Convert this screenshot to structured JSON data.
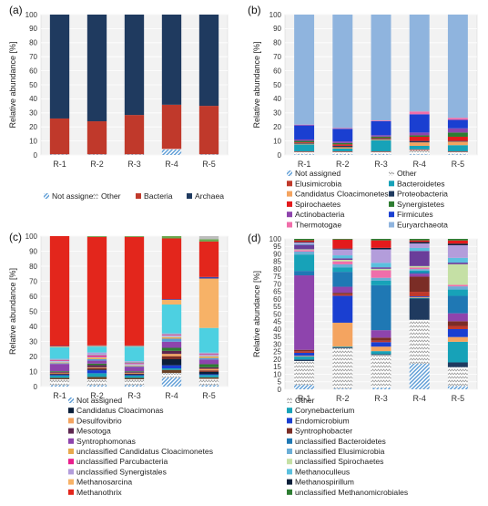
{
  "chart_data": [
    {
      "panel": "(a)",
      "type": "bar",
      "stacked": true,
      "categories": [
        "R-1",
        "R-2",
        "R-3",
        "R-4",
        "R-5"
      ],
      "ylabel": "Relative abundance [%]",
      "ylim": [
        0,
        100
      ],
      "yticks": [
        0,
        10,
        20,
        30,
        40,
        50,
        60,
        70,
        80,
        90,
        100
      ],
      "legend_position": "bottom",
      "legend_cols": 4,
      "series": [
        {
          "name": "Not assigned",
          "color": "#5b9bd5",
          "pattern": "hatch",
          "values": [
            0.3,
            0.3,
            0.3,
            4,
            0.3
          ]
        },
        {
          "name": "Other",
          "color": "#a6a6a6",
          "pattern": "zigzag",
          "values": [
            0.2,
            0.2,
            0.2,
            0.3,
            0.2
          ]
        },
        {
          "name": "Bacteria",
          "color": "#c0392b",
          "values": [
            25.5,
            23.5,
            28,
            31.5,
            34.5
          ]
        },
        {
          "name": "Archaea",
          "color": "#1f3a5f",
          "values": [
            74,
            76,
            71.5,
            64.2,
            65
          ]
        }
      ]
    },
    {
      "panel": "(b)",
      "type": "bar",
      "stacked": true,
      "categories": [
        "R-1",
        "R-2",
        "R-3",
        "R-4",
        "R-5"
      ],
      "ylabel": "Relative abundance [%]",
      "ylim": [
        0,
        100
      ],
      "yticks": [
        0,
        10,
        20,
        30,
        40,
        50,
        60,
        70,
        80,
        90,
        100
      ],
      "legend_position": "bottom",
      "legend_cols": 2,
      "series": [
        {
          "name": "Not assigned",
          "color": "#5b9bd5",
          "pattern": "hatch",
          "values": [
            0.5,
            0.5,
            0.5,
            0.5,
            0.5
          ]
        },
        {
          "name": "Other",
          "color": "#a6a6a6",
          "pattern": "zigzag",
          "values": [
            1.5,
            1.5,
            1.5,
            3,
            1.5
          ]
        },
        {
          "name": "Elusimicrobia",
          "color": "#c0392b",
          "values": [
            0.5,
            0.5,
            0.5,
            0.5,
            0.5
          ]
        },
        {
          "name": "Bacteroidetes",
          "color": "#17a2b8",
          "values": [
            5,
            2,
            8,
            2.5,
            4.5
          ]
        },
        {
          "name": "Candidatus Cloacimonetes",
          "color": "#f4a460",
          "values": [
            0.5,
            1,
            0.5,
            2.5,
            2.5
          ]
        },
        {
          "name": "Proteobacteria",
          "color": "#1f3a5f",
          "values": [
            0.5,
            1,
            0.5,
            1,
            0.5
          ]
        },
        {
          "name": "Spirochaetes",
          "color": "#e31a1c",
          "values": [
            0.5,
            1,
            0.5,
            3,
            3
          ]
        },
        {
          "name": "Synergistetes",
          "color": "#2e7d32",
          "values": [
            1,
            1,
            1,
            1,
            3
          ]
        },
        {
          "name": "Actinobacteria",
          "color": "#8e44ad",
          "values": [
            1,
            1,
            1,
            2,
            3
          ]
        },
        {
          "name": "Firmicutes",
          "color": "#1a3fd1",
          "values": [
            10,
            9,
            10,
            13,
            6
          ]
        },
        {
          "name": "Thermotogae",
          "color": "#f06eaa",
          "values": [
            0.5,
            0.5,
            0.5,
            2,
            1.5
          ]
        },
        {
          "name": "Euryarchaeota",
          "color": "#8fb4de",
          "values": [
            78,
            80,
            75,
            69,
            73.5
          ]
        }
      ]
    },
    {
      "panel": "(c)",
      "type": "bar",
      "stacked": true,
      "categories": [
        "R-1",
        "R-2",
        "R-3",
        "R-4",
        "R-5"
      ],
      "ylabel": "Relative abundance [%]",
      "ylim": [
        0,
        100
      ],
      "yticks": [
        0,
        10,
        20,
        30,
        40,
        50,
        60,
        70,
        80,
        90,
        100
      ],
      "legend_position": "bottom",
      "legend_cols": 1,
      "series": [
        {
          "name": "Not assigned",
          "color": "#5b9bd5",
          "pattern": "hatch",
          "values": [
            1,
            1,
            1,
            6,
            1
          ]
        },
        {
          "name": "",
          "color": "#a6a6a6",
          "pattern": "zigzag",
          "values": [
            4,
            4,
            4,
            3,
            4
          ]
        },
        {
          "name": "",
          "color": "#6b4226",
          "values": [
            1,
            1.5,
            1,
            2,
            1
          ]
        },
        {
          "name": "",
          "color": "#17a2b8",
          "values": [
            1.5,
            2.5,
            1.5,
            1,
            1.5
          ]
        },
        {
          "name": "",
          "color": "#1a3fd1",
          "values": [
            0.5,
            2,
            0.5,
            2,
            0.5
          ]
        },
        {
          "name": "Candidatus Cloacimonas",
          "color": "#0b1f3a",
          "values": [
            0.5,
            0.5,
            0.5,
            4,
            1.5
          ]
        },
        {
          "name": "",
          "color": "#7b2d26",
          "values": [
            0.5,
            1,
            0.5,
            2,
            1
          ]
        },
        {
          "name": "Desulfovibrio",
          "color": "#f4a460",
          "values": [
            0.5,
            0.5,
            0.5,
            1.5,
            1
          ]
        },
        {
          "name": "Mesotoga",
          "color": "#5e2750",
          "values": [
            0.5,
            1.5,
            0.5,
            2,
            1
          ]
        },
        {
          "name": "",
          "color": "#2e7d32",
          "values": [
            0.5,
            1,
            0.5,
            2,
            2
          ]
        },
        {
          "name": "Syntrophomonas",
          "color": "#8e44ad",
          "values": [
            5,
            2,
            3,
            4,
            3
          ]
        },
        {
          "name": "",
          "color": "#5b9bd5",
          "values": [
            0.5,
            1,
            0.5,
            2,
            1
          ]
        },
        {
          "name": "unclassified Candidatus Cloacimonetes",
          "color": "#e8a94d",
          "values": [
            0.5,
            1,
            0.5,
            1,
            1
          ]
        },
        {
          "name": "",
          "color": "#b0c4de",
          "values": [
            1,
            0.5,
            1,
            1,
            1
          ]
        },
        {
          "name": "unclassified Parcubacteria",
          "color": "#e91e8c",
          "values": [
            0.5,
            1,
            0.5,
            0.5,
            0.5
          ]
        },
        {
          "name": "",
          "color": "#9aa7b0",
          "values": [
            0.5,
            0.5,
            1,
            0.5,
            0.5
          ]
        },
        {
          "name": "unclassified Synergistales",
          "color": "#b39ddb",
          "values": [
            0.5,
            1.5,
            0.5,
            0.5,
            0.5
          ]
        },
        {
          "name": "",
          "color": "#4dd0e1",
          "values": [
            8,
            4,
            10,
            19,
            16
          ]
        },
        {
          "name": "Methanosarcina",
          "color": "#f7b267",
          "values": [
            0.5,
            0.5,
            0.5,
            3,
            32
          ]
        },
        {
          "name": "",
          "color": "#3949ab",
          "values": [
            0.3,
            0.3,
            0.3,
            0.5,
            1
          ]
        },
        {
          "name": "Methanothrix",
          "color": "#e3261c",
          "values": [
            75.2,
            73.2,
            74.8,
            40,
            23
          ]
        },
        {
          "name": "",
          "color": "#6aa84f",
          "values": [
            0,
            0.5,
            0.5,
            1.5,
            1.5
          ]
        },
        {
          "name": "",
          "color": "#bdbdbd",
          "values": [
            0,
            0,
            0,
            0,
            2
          ]
        }
      ]
    },
    {
      "panel": "(d)",
      "type": "bar",
      "stacked": true,
      "categories": [
        "R-1",
        "R-2",
        "R-3",
        "R-4",
        "R-5"
      ],
      "ylabel": "Relative abundance [%]",
      "ylim": [
        0,
        100
      ],
      "yticks": [
        0,
        5,
        10,
        15,
        20,
        25,
        30,
        35,
        40,
        45,
        50,
        55,
        60,
        65,
        70,
        75,
        80,
        85,
        90,
        95,
        100
      ],
      "legend_position": "bottom",
      "legend_cols": 1,
      "series": [
        {
          "name": "",
          "color": "#5b9bd5",
          "pattern": "hatch",
          "values": [
            3,
            0.5,
            1,
            17,
            2
          ]
        },
        {
          "name": "Other",
          "color": "#a6a6a6",
          "pattern": "zigzag",
          "values": [
            16,
            27,
            22,
            29,
            12
          ]
        },
        {
          "name": "",
          "color": "#1f3a5f",
          "values": [
            1,
            0.5,
            0.5,
            14,
            3
          ]
        },
        {
          "name": "Corynebacterium",
          "color": "#17a2b8",
          "values": [
            2,
            0.5,
            2,
            0.5,
            13
          ]
        },
        {
          "name": "",
          "color": "#f4a460",
          "values": [
            0.5,
            16,
            3,
            0.5,
            3
          ]
        },
        {
          "name": "Endomicrobium",
          "color": "#1a3fd1",
          "values": [
            2,
            18,
            3,
            0.5,
            5
          ]
        },
        {
          "name": "",
          "color": "#c0392b",
          "values": [
            1,
            1,
            1,
            3,
            2
          ]
        },
        {
          "name": "Syntrophobacter",
          "color": "#7b2d26",
          "values": [
            1,
            1,
            2,
            10,
            3
          ]
        },
        {
          "name": "",
          "color": "#8e44ad",
          "values": [
            50,
            4,
            5,
            2,
            5
          ]
        },
        {
          "name": "unclassified Bacteroidetes",
          "color": "#1f78b4",
          "values": [
            3,
            10,
            30,
            1,
            11
          ]
        },
        {
          "name": "",
          "color": "#17a2b8",
          "values": [
            11,
            3,
            3,
            1,
            4
          ]
        },
        {
          "name": "unclassified Elusimicrobia",
          "color": "#6baed6",
          "values": [
            2,
            2,
            2,
            1,
            2
          ]
        },
        {
          "name": "",
          "color": "#f06eaa",
          "values": [
            1,
            2,
            5,
            1,
            1
          ]
        },
        {
          "name": "unclassified Spirochaetes",
          "color": "#c5e0a5",
          "values": [
            0.5,
            1,
            1,
            1,
            13
          ]
        },
        {
          "name": "",
          "color": "#6a3d9a",
          "values": [
            3,
            1,
            1,
            10,
            1
          ]
        },
        {
          "name": "Methanoculleus",
          "color": "#5bc0de",
          "values": [
            0.5,
            2,
            3,
            2,
            3
          ]
        },
        {
          "name": "",
          "color": "#b39ddb",
          "values": [
            1,
            4,
            9,
            3,
            8
          ]
        },
        {
          "name": "Methanospirillum",
          "color": "#0b1f3a",
          "values": [
            0.5,
            0.5,
            1,
            1,
            1
          ]
        },
        {
          "name": "",
          "color": "#e31a1c",
          "values": [
            1,
            6,
            5,
            1,
            2
          ]
        },
        {
          "name": "unclassified Methanomicrobiales",
          "color": "#2e7d32",
          "values": [
            1,
            0.5,
            1,
            1,
            1
          ]
        }
      ]
    }
  ]
}
